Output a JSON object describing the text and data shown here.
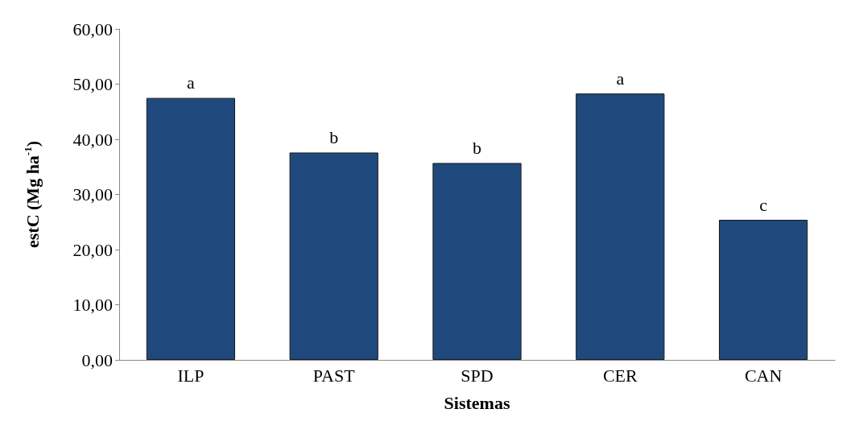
{
  "chart_data": {
    "type": "bar",
    "xlabel": "Sistemas",
    "ylabel": "estC (Mg ha$^{-1}$)",
    "categories": [
      "ILP",
      "PAST",
      "SPD",
      "CER",
      "CAN"
    ],
    "values": [
      47.5,
      37.6,
      35.7,
      48.3,
      25.4
    ],
    "color": "#1f497d",
    "ylim": [
      0,
      60
    ],
    "yticks": [
      {
        "value": 0,
        "label": "0,00"
      },
      {
        "value": 10,
        "label": "10,00"
      },
      {
        "value": 20,
        "label": "20,00"
      },
      {
        "value": 30,
        "label": "30,00"
      },
      {
        "value": 40,
        "label": "40,00"
      },
      {
        "value": 50,
        "label": "50,00"
      },
      {
        "value": 60,
        "label": "60,00"
      }
    ],
    "annotations": [
      {
        "text": "a",
        "x": "ILP",
        "y": 47.5
      },
      {
        "text": "b",
        "x": "PAST",
        "y": 37.6
      },
      {
        "text": "b",
        "x": "SPD",
        "y": 35.7
      },
      {
        "text": "a",
        "x": "CER",
        "y": 48.3
      },
      {
        "text": "c",
        "x": "CAN",
        "y": 25.4
      }
    ],
    "data_labels": false
  }
}
